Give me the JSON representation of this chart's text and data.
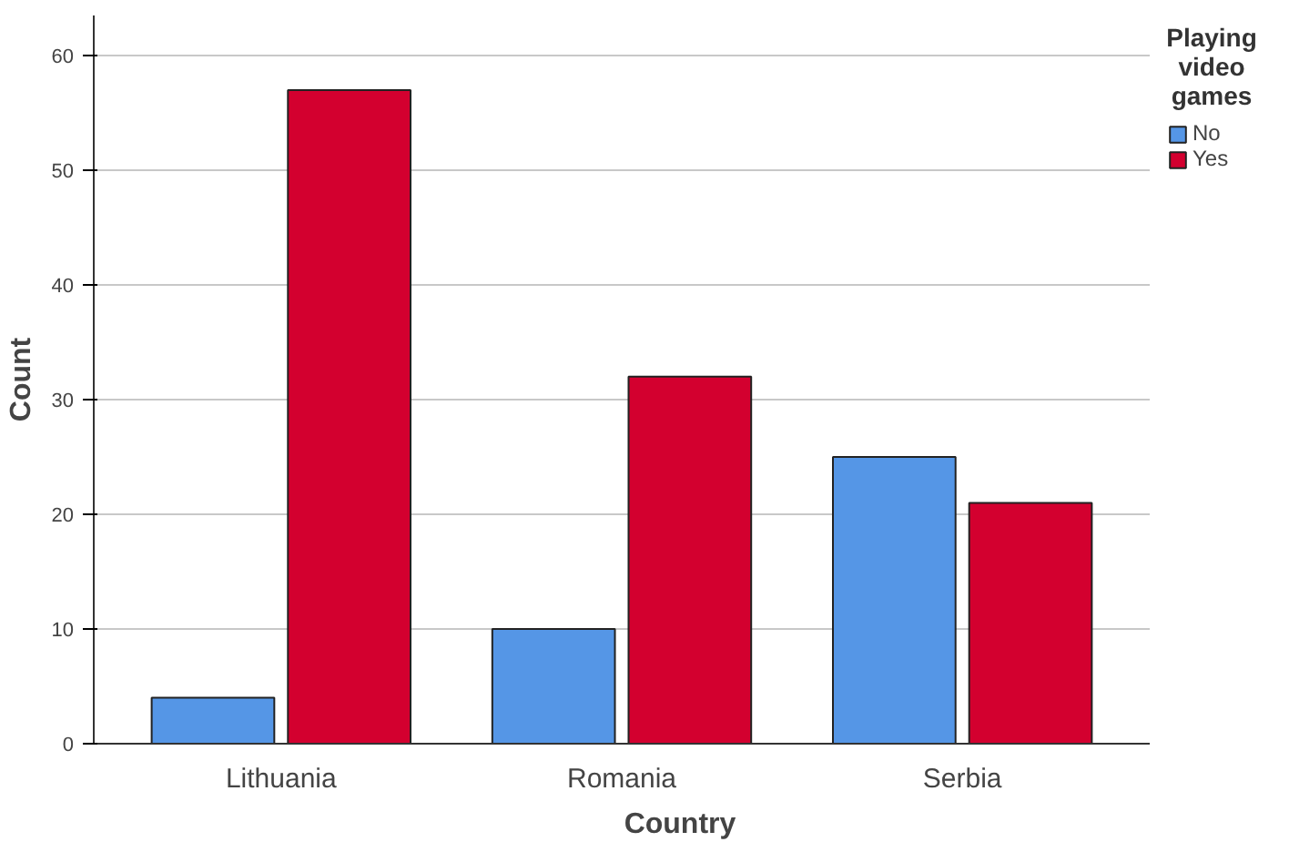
{
  "chart_data": {
    "type": "bar",
    "xlabel": "Country",
    "ylabel": "Count",
    "legend_title": "Playing video games",
    "categories": [
      "Lithuania",
      "Romania",
      "Serbia"
    ],
    "series": [
      {
        "name": "No",
        "color": "#5596e6",
        "values": [
          4,
          10,
          25
        ]
      },
      {
        "name": "Yes",
        "color": "#d3002f",
        "values": [
          57,
          32,
          21
        ]
      }
    ],
    "ylim": [
      0,
      63.5
    ],
    "yticks": [
      0,
      10,
      20,
      30,
      40,
      50,
      60
    ],
    "grid": "y",
    "legend": "top right"
  }
}
